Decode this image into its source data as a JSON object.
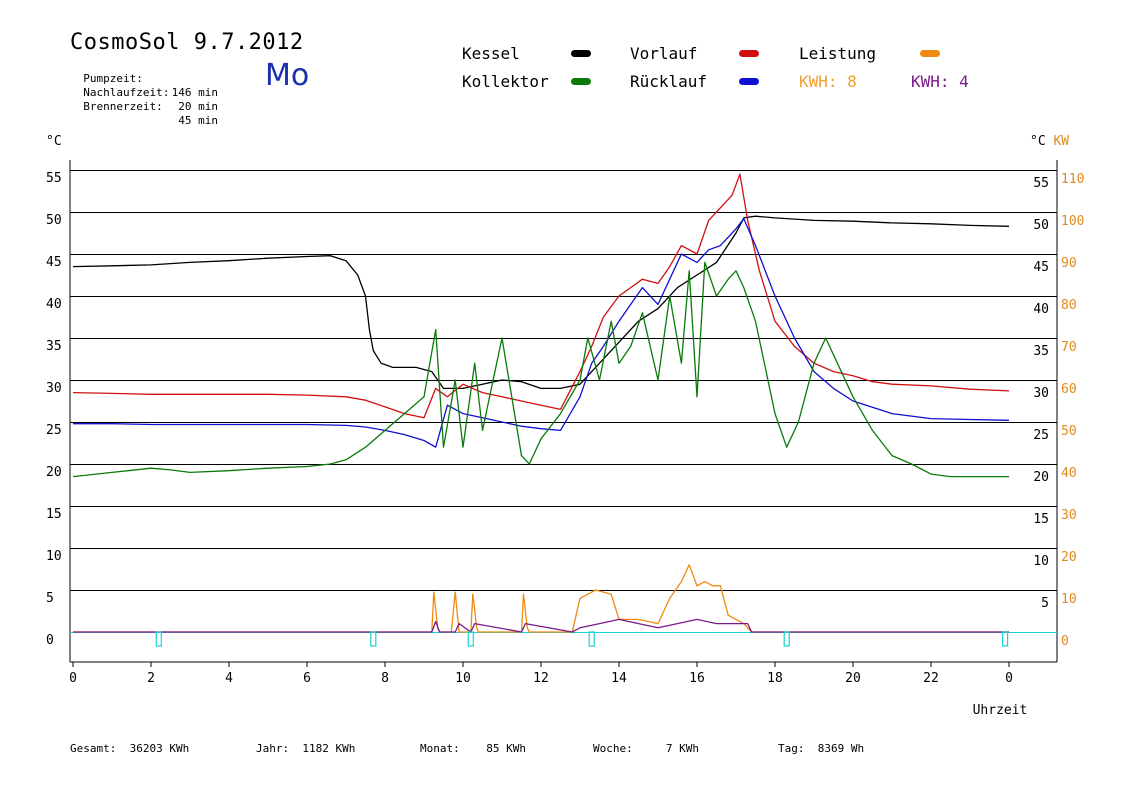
{
  "header": {
    "title": "CosmoSol 9.7.2012",
    "day": "Mo",
    "info": [
      {
        "label": "Pumpzeit:",
        "value": "146 min"
      },
      {
        "label": "Nachlaufzeit:",
        "value": "20 min"
      },
      {
        "label": "Brennerzeit:",
        "value": "45 min"
      }
    ]
  },
  "legend": {
    "kessel": "Kessel",
    "kollektor": "Kollektor",
    "vorlauf": "Vorlauf",
    "ruecklauf": "Rücklauf",
    "leistung": "Leistung",
    "kwh_orange": "KWH: 8",
    "kwh_purple": "KWH: 4"
  },
  "colors": {
    "kessel": "#000000",
    "kollektor": "#0a7a0a",
    "vorlauf": "#d01010",
    "ruecklauf": "#1010d0",
    "leistung": "#f08a10",
    "purple": "#7a1a8a",
    "pump": "#19d3d3"
  },
  "footer": [
    {
      "label": "Gesamt:",
      "value": "36203 KWh"
    },
    {
      "label": "Jahr:",
      "value": "1182 KWh"
    },
    {
      "label": "Monat:",
      "value": "85 KWh"
    },
    {
      "label": "Woche:",
      "value": "7 KWh"
    },
    {
      "label": "Tag:",
      "value": "8369 Wh"
    }
  ],
  "chart_data": {
    "type": "line",
    "xlabel": "Uhrzeit",
    "ylabel_left": "°C",
    "ylabel_right": "°C KW",
    "xlim": [
      0,
      24
    ],
    "ylim": [
      -4,
      57
    ],
    "x_ticks": [
      "0",
      "2",
      "4",
      "6",
      "8",
      "10",
      "12",
      "14",
      "16",
      "18",
      "20",
      "22",
      "0"
    ],
    "y_ticks_left": [
      0,
      5,
      10,
      15,
      20,
      25,
      30,
      35,
      40,
      45,
      50,
      55
    ],
    "y_ticks_right_c": [
      5,
      10,
      15,
      20,
      25,
      30,
      35,
      40,
      45,
      50,
      55
    ],
    "y_ticks_right_kw": [
      0,
      10,
      20,
      30,
      40,
      50,
      60,
      70,
      80,
      90,
      100,
      110
    ],
    "grid": true,
    "series": [
      {
        "name": "Kessel",
        "color_key": "kessel",
        "x": [
          0,
          1,
          2,
          3,
          4,
          5,
          6,
          6.6,
          7.0,
          7.3,
          7.5,
          7.6,
          7.7,
          7.9,
          8.2,
          8.8,
          9.2,
          9.5,
          10,
          10.5,
          11,
          11.5,
          12,
          12.5,
          13,
          13.5,
          14,
          14.5,
          15,
          15.5,
          16,
          16.5,
          17,
          17.2,
          17.5,
          18,
          19,
          20,
          21,
          22,
          23,
          24
        ],
        "y": [
          43.5,
          43.6,
          43.7,
          44.0,
          44.2,
          44.5,
          44.7,
          44.8,
          44.2,
          42.5,
          40,
          36,
          33.5,
          32,
          31.5,
          31.5,
          31,
          29,
          29,
          29.5,
          30,
          29.8,
          29,
          29,
          29.5,
          32,
          34.5,
          37,
          38.5,
          41,
          42.5,
          44,
          47.5,
          49.3,
          49.5,
          49.3,
          49,
          48.9,
          48.7,
          48.6,
          48.4,
          48.3
        ]
      },
      {
        "name": "Vorlauf",
        "color_key": "vorlauf",
        "x": [
          0,
          1,
          2,
          3,
          4,
          5,
          6,
          7,
          7.5,
          8,
          8.5,
          9,
          9.3,
          9.6,
          10,
          10.5,
          11,
          11.5,
          12,
          12.5,
          13,
          13.3,
          13.6,
          14,
          14.3,
          14.6,
          15,
          15.3,
          15.6,
          16,
          16.3,
          16.6,
          16.9,
          17.1,
          17.3,
          17.6,
          18,
          18.5,
          19,
          19.5,
          20,
          20.5,
          21,
          22,
          23,
          24
        ],
        "y": [
          28.5,
          28.4,
          28.3,
          28.3,
          28.3,
          28.3,
          28.2,
          28,
          27.6,
          26.8,
          26,
          25.5,
          29,
          28,
          29.5,
          28.5,
          28,
          27.5,
          27,
          26.5,
          31,
          34,
          37.5,
          40,
          41,
          42,
          41.5,
          43.5,
          46,
          45,
          49,
          50.5,
          52,
          54.5,
          49,
          43,
          37,
          34,
          32,
          31,
          30.5,
          29.8,
          29.5,
          29.3,
          28.9,
          28.7
        ]
      },
      {
        "name": "Rücklauf",
        "color_key": "ruecklauf",
        "x": [
          0,
          1,
          2,
          3,
          4,
          5,
          6,
          7,
          7.5,
          8,
          8.5,
          9,
          9.3,
          9.6,
          10,
          10.5,
          11,
          11.5,
          12,
          12.5,
          13,
          13.3,
          13.6,
          14,
          14.3,
          14.6,
          15,
          15.3,
          15.6,
          16,
          16.3,
          16.6,
          17,
          17.2,
          17.5,
          18,
          18.5,
          19,
          19.5,
          20,
          21,
          22,
          23,
          24
        ],
        "y": [
          24.8,
          24.8,
          24.7,
          24.7,
          24.7,
          24.7,
          24.7,
          24.6,
          24.4,
          24,
          23.5,
          22.8,
          22,
          27,
          26,
          25.5,
          25,
          24.5,
          24.2,
          24,
          28,
          32,
          34,
          37,
          39,
          41,
          39,
          42,
          45,
          44,
          45.5,
          46,
          48,
          49.2,
          46,
          40,
          35,
          31,
          29,
          27.5,
          26,
          25.4,
          25.3,
          25.2
        ]
      },
      {
        "name": "Kollektor",
        "color_key": "kollektor",
        "x": [
          0,
          1,
          2,
          2.5,
          3,
          4,
          5,
          6,
          6.6,
          7,
          7.5,
          8,
          8.5,
          9,
          9.3,
          9.5,
          9.8,
          10,
          10.3,
          10.5,
          11,
          11.5,
          11.7,
          12,
          12.5,
          13,
          13.2,
          13.5,
          13.8,
          14,
          14.3,
          14.6,
          15,
          15.3,
          15.6,
          15.8,
          16,
          16.2,
          16.5,
          16.8,
          17,
          17.2,
          17.5,
          18,
          18.3,
          18.6,
          19,
          19.3,
          19.6,
          20,
          20.5,
          21,
          21.5,
          22,
          22.5,
          23,
          24
        ],
        "y": [
          18.5,
          19,
          19.5,
          19.3,
          19,
          19.2,
          19.5,
          19.7,
          20,
          20.5,
          22,
          24,
          26,
          28,
          36,
          22,
          30,
          22,
          32,
          24,
          35,
          21,
          20,
          23,
          26,
          30,
          35,
          30,
          37,
          32,
          34,
          38,
          30,
          40,
          32,
          43,
          28,
          44,
          40,
          42,
          43,
          41,
          37,
          26,
          22,
          25,
          32,
          35,
          32,
          28,
          24,
          21,
          20,
          18.8,
          18.5,
          18.5,
          18.5
        ]
      },
      {
        "name": "Leistung",
        "color_key": "leistung",
        "unit": "KW",
        "x": [
          0,
          9.2,
          9.25,
          9.35,
          9.4,
          9.7,
          9.8,
          9.9,
          10.2,
          10.25,
          10.35,
          10.4,
          11.5,
          11.55,
          11.65,
          11.7,
          12.8,
          13,
          13.2,
          13.4,
          13.6,
          13.8,
          14,
          14.5,
          15,
          15.3,
          15.6,
          15.8,
          16,
          16.2,
          16.4,
          16.6,
          16.8,
          17,
          17.2,
          17.4,
          24
        ],
        "y": [
          0,
          0,
          9.5,
          1,
          0,
          0,
          9.5,
          0,
          0,
          9,
          1,
          0,
          0,
          9,
          1,
          0,
          0,
          8,
          9,
          10,
          9.5,
          9,
          3,
          3,
          2,
          8,
          12,
          16,
          11,
          12,
          11,
          11,
          4,
          3,
          2,
          0,
          0
        ]
      },
      {
        "name": "KWH purple",
        "color_key": "purple",
        "unit": "KW",
        "x": [
          0,
          9.2,
          9.3,
          9.4,
          9.8,
          9.9,
          10.2,
          10.3,
          11.5,
          11.6,
          12.8,
          13,
          13.5,
          14,
          14.5,
          15,
          15.5,
          16,
          16.5,
          17,
          17.3,
          17.4,
          24
        ],
        "y": [
          0,
          0,
          2.5,
          0,
          0,
          2,
          0,
          2,
          0,
          2,
          0,
          1,
          2,
          3,
          2,
          1,
          2,
          3,
          2,
          2,
          2,
          0,
          0
        ]
      }
    ],
    "pump_pulses": [
      2.2,
      7.7,
      10.2,
      13.3,
      18.3,
      23.9
    ]
  }
}
